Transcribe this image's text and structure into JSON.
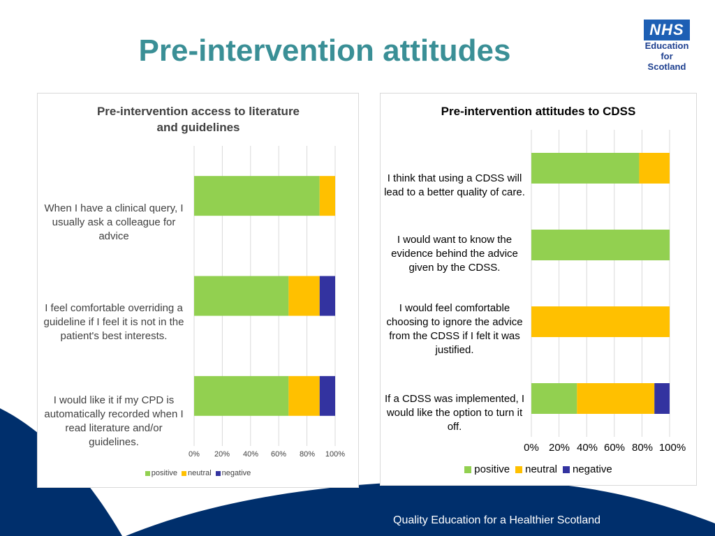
{
  "slide": {
    "title": "Pre-intervention attitudes",
    "footer": "Quality Education for a Healthier Scotland"
  },
  "logo": {
    "brand": "NHS",
    "lines": [
      "Education",
      "for",
      "Scotland"
    ]
  },
  "colors": {
    "positive": "#92d050",
    "neutral": "#ffc000",
    "negative": "#3333a0",
    "title": "#3a8f96",
    "footer_bg": "#002f6c"
  },
  "chart_data": [
    {
      "type": "bar",
      "orientation": "horizontal",
      "stacked": "percent",
      "title": "Pre-intervention access to literature and guidelines",
      "categories": [
        "When I have a clinical query, I usually ask a colleague for advice",
        "I feel comfortable overriding a guideline if I feel it is not in the patient's best interests.",
        "I would like it if my CPD is automatically recorded when I read literature and/or guidelines."
      ],
      "series": [
        {
          "name": "positive",
          "values": [
            89,
            67,
            67
          ]
        },
        {
          "name": "neutral",
          "values": [
            11,
            22,
            22
          ]
        },
        {
          "name": "negative",
          "values": [
            0,
            11,
            11
          ]
        }
      ],
      "xlim": [
        0,
        100
      ],
      "x_ticks": [
        "0%",
        "20%",
        "40%",
        "60%",
        "80%",
        "100%"
      ],
      "grid": true,
      "legend": "bottom"
    },
    {
      "type": "bar",
      "orientation": "horizontal",
      "stacked": "percent",
      "title": "Pre-intervention attitudes to CDSS",
      "categories": [
        "I think that using a CDSS will lead to a better quality of care.",
        "I would want to know the evidence behind the advice given by the CDSS.",
        "I would feel comfortable choosing to ignore the advice from the CDSS if I felt it was justified.",
        "If a CDSS was implemented, I would like the option to turn it off."
      ],
      "series": [
        {
          "name": "positive",
          "values": [
            78,
            100,
            0,
            33
          ]
        },
        {
          "name": "neutral",
          "values": [
            22,
            0,
            100,
            56
          ]
        },
        {
          "name": "negative",
          "values": [
            0,
            0,
            0,
            11
          ]
        }
      ],
      "xlim": [
        0,
        100
      ],
      "x_ticks": [
        "0%",
        "20%",
        "40%",
        "60%",
        "80%",
        "100%"
      ],
      "grid": true,
      "legend": "bottom"
    }
  ]
}
